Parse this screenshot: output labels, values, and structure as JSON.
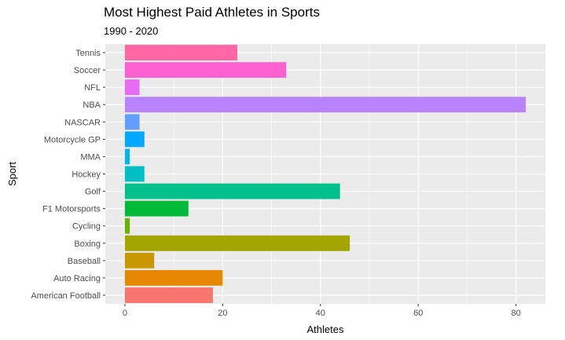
{
  "chart_data": {
    "type": "bar",
    "orientation": "horizontal",
    "title": "Most Highest Paid Athletes in Sports",
    "subtitle": "1990 - 2020",
    "xlabel": "Athletes",
    "ylabel": "Sport",
    "xlim": [
      -4,
      86
    ],
    "x_ticks": [
      0,
      20,
      40,
      60,
      80
    ],
    "grid": true,
    "legend": "none",
    "categories": [
      "American Football",
      "Auto Racing",
      "Baseball",
      "Boxing",
      "Cycling",
      "F1 Motorsports",
      "Golf",
      "Hockey",
      "MMA",
      "Motorcycle GP",
      "NASCAR",
      "NBA",
      "NFL",
      "Soccer",
      "Tennis"
    ],
    "values": [
      18,
      20,
      6,
      46,
      1,
      13,
      44,
      4,
      1,
      4,
      3,
      82,
      3,
      33,
      23
    ],
    "colors": [
      "#F8766D",
      "#E58700",
      "#C99800",
      "#A3A500",
      "#6BB100",
      "#00BA38",
      "#00C08B",
      "#00BFC4",
      "#00B4F0",
      "#00A9FF",
      "#619CFF",
      "#B983FF",
      "#E76BF3",
      "#FD61D1",
      "#FF67A4"
    ],
    "panel_background": "#EBEBEB",
    "grid_color": "#FFFFFF"
  }
}
